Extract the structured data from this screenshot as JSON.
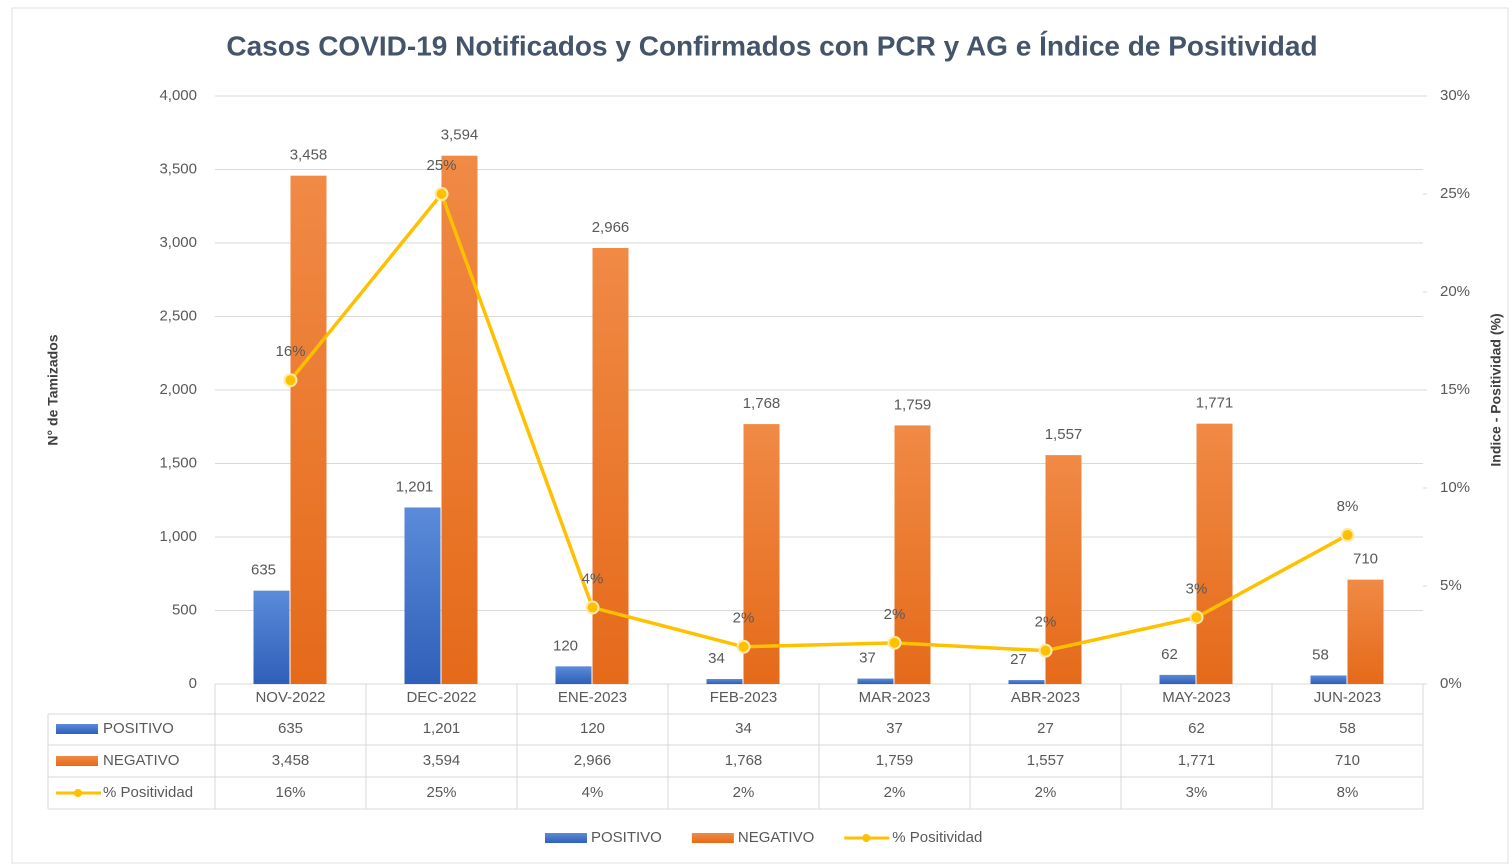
{
  "chart_data": {
    "type": "bar_line",
    "title": "Casos COVID-19 Notificados y Confirmados con PCR y AG e Índice de Positividad",
    "y_label": "N° de Tamizados",
    "y2_label": "Indice - Positividad (%)",
    "categories": [
      "NOV-2022",
      "DEC-2022",
      "ENE-2023",
      "FEB-2023",
      "MAR-2023",
      "ABR-2023",
      "MAY-2023",
      "JUN-2023"
    ],
    "series": [
      {
        "name": "POSITIVO",
        "type": "bar",
        "color": "#4472c4",
        "values": [
          635,
          1201,
          120,
          34,
          37,
          27,
          62,
          58
        ],
        "value_labels": [
          "635",
          "1,201",
          "120",
          "34",
          "37",
          "27",
          "62",
          "58"
        ]
      },
      {
        "name": "NEGATIVO",
        "type": "bar",
        "color": "#ed7d31",
        "values": [
          3458,
          3594,
          2966,
          1768,
          1759,
          1557,
          1771,
          710
        ],
        "value_labels": [
          "3,458",
          "3,594",
          "2,966",
          "1,768",
          "1,759",
          "1,557",
          "1,771",
          "710"
        ]
      },
      {
        "name": "% Positividad",
        "type": "line",
        "axis": "y2",
        "color": "#ffc000",
        "values": [
          15.5,
          25.0,
          3.9,
          1.9,
          2.1,
          1.7,
          3.4,
          7.6
        ],
        "value_labels": [
          "16%",
          "25%",
          "4%",
          "2%",
          "2%",
          "2%",
          "3%",
          "8%"
        ]
      }
    ],
    "ylim": [
      0,
      4000
    ],
    "yticks": [
      0,
      500,
      {
        "value": 1000,
        "label": "1,000"
      },
      {
        "value": 1500,
        "label": "1,500"
      },
      {
        "value": 2000,
        "label": "2,000"
      },
      {
        "value": 2500,
        "label": "2,500"
      },
      {
        "value": 3000,
        "label": "3,000"
      },
      {
        "value": 3500,
        "label": "3,500"
      },
      {
        "value": 4000,
        "label": "4,000"
      }
    ],
    "y2lim": [
      0,
      30
    ],
    "y2ticks": [
      {
        "value": 0,
        "label": "0%"
      },
      {
        "value": 5,
        "label": "5%"
      },
      {
        "value": 10,
        "label": "10%"
      },
      {
        "value": 15,
        "label": "15%"
      },
      {
        "value": 20,
        "label": "20%"
      },
      {
        "value": 25,
        "label": "25%"
      },
      {
        "value": 30,
        "label": "30%"
      }
    ],
    "grid": true,
    "legend": "bottom"
  }
}
